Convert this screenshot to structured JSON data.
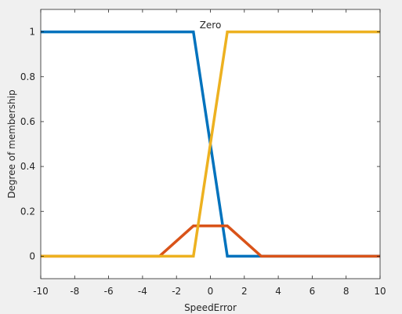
{
  "chart_data": {
    "type": "line",
    "title": "",
    "xlabel": "SpeedError",
    "ylabel": "Degree of membership",
    "xlim": [
      -10,
      10
    ],
    "ylim": [
      -0.1,
      1.1
    ],
    "xticks": [
      -10,
      -8,
      -6,
      -4,
      -2,
      0,
      2,
      4,
      6,
      8,
      10
    ],
    "yticks": [
      0,
      0.2,
      0.4,
      0.6,
      0.8,
      1
    ],
    "grid": false,
    "legend": "none",
    "annotations": [
      {
        "text": "Zero",
        "x": 0,
        "y": 1.03
      }
    ],
    "series": [
      {
        "color": "#0072BD",
        "x": [
          -10,
          -1,
          1,
          10
        ],
        "y": [
          1,
          1,
          0,
          0
        ]
      },
      {
        "color": "#D95319",
        "x": [
          -10,
          -3,
          -1,
          1,
          3,
          10
        ],
        "y": [
          0,
          0,
          0.135,
          0.135,
          0,
          0
        ]
      },
      {
        "color": "#EDB120",
        "x": [
          -10,
          -1,
          1,
          10
        ],
        "y": [
          0,
          0,
          1,
          1
        ]
      }
    ]
  }
}
